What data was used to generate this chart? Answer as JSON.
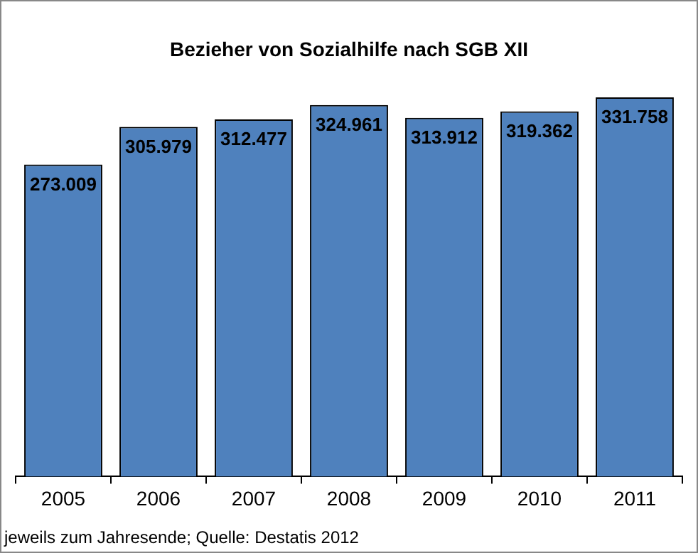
{
  "chart_data": {
    "type": "bar",
    "title": "Bezieher von Sozialhilfe nach SGB XII",
    "categories": [
      "2005",
      "2006",
      "2007",
      "2008",
      "2009",
      "2010",
      "2011"
    ],
    "values": [
      273009,
      305979,
      312477,
      324961,
      313912,
      319362,
      331758
    ],
    "value_labels": [
      "273.009",
      "305.979",
      "312.477",
      "324.961",
      "313.912",
      "319.362",
      "331.758"
    ],
    "color": "#4f81bd",
    "annotations": [
      "jeweils zum Jahresende; Quelle: Destatis 2012"
    ]
  }
}
